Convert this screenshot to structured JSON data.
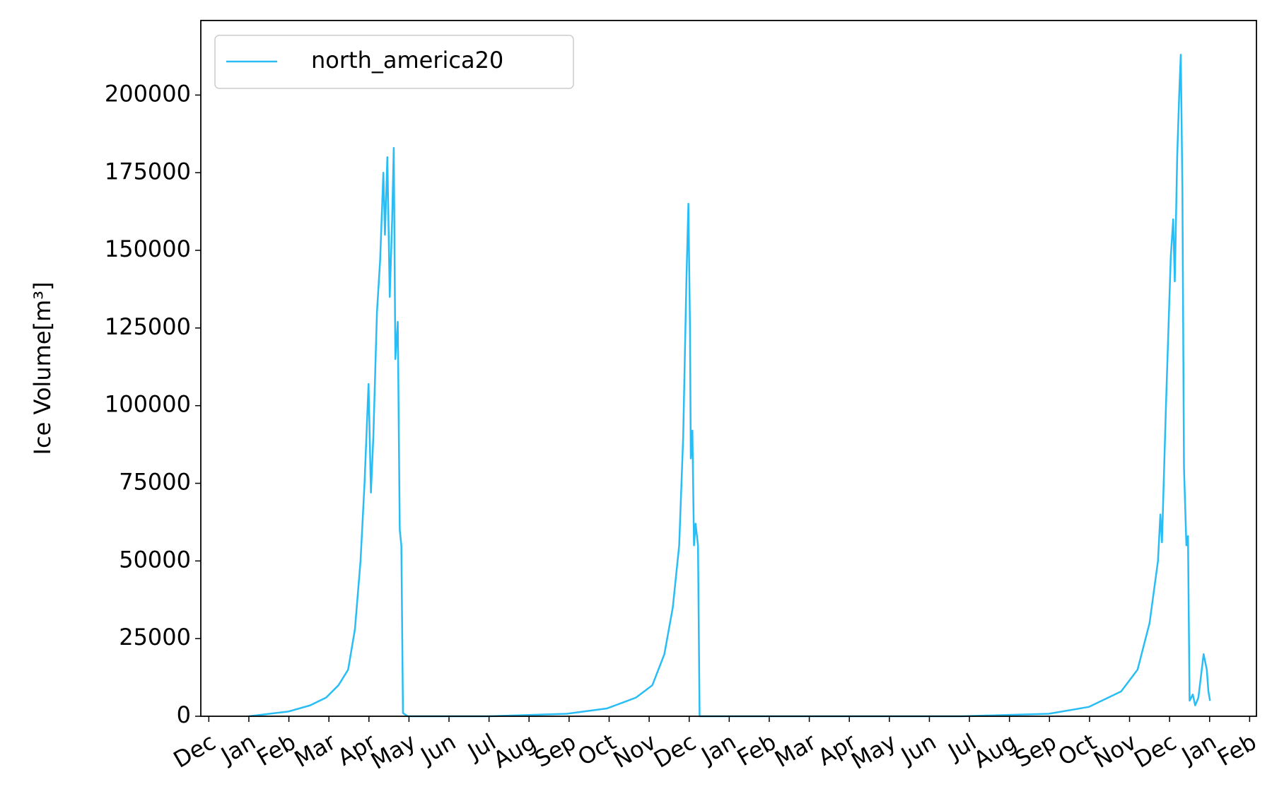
{
  "chart_data": {
    "type": "line",
    "y_label": "Ice Volume[m³]",
    "legend": "upper left",
    "grid": false,
    "xlim": [
      -0.2,
      26.17
    ],
    "ylim": [
      0,
      224000
    ],
    "yticks": [
      0,
      25000,
      50000,
      75000,
      100000,
      125000,
      150000,
      175000,
      200000
    ],
    "xticks": [
      {
        "value": 0,
        "label": "Dec"
      },
      {
        "value": 1,
        "label": "Jan"
      },
      {
        "value": 2,
        "label": "Feb"
      },
      {
        "value": 3,
        "label": "Mar"
      },
      {
        "value": 4,
        "label": "Apr"
      },
      {
        "value": 5,
        "label": "May"
      },
      {
        "value": 6,
        "label": "Jun"
      },
      {
        "value": 7,
        "label": "Jul"
      },
      {
        "value": 8,
        "label": "Aug"
      },
      {
        "value": 9,
        "label": "Sep"
      },
      {
        "value": 10,
        "label": "Oct"
      },
      {
        "value": 11,
        "label": "Nov"
      },
      {
        "value": 12,
        "label": "Dec"
      },
      {
        "value": 13,
        "label": "Jan"
      },
      {
        "value": 14,
        "label": "Feb"
      },
      {
        "value": 15,
        "label": "Mar"
      },
      {
        "value": 16,
        "label": "Apr"
      },
      {
        "value": 17,
        "label": "May"
      },
      {
        "value": 18,
        "label": "Jun"
      },
      {
        "value": 19,
        "label": "Jul"
      },
      {
        "value": 20,
        "label": "Aug"
      },
      {
        "value": 21,
        "label": "Sep"
      },
      {
        "value": 22,
        "label": "Oct"
      },
      {
        "value": 23,
        "label": "Nov"
      },
      {
        "value": 24,
        "label": "Dec"
      },
      {
        "value": 25,
        "label": "Jan"
      },
      {
        "value": 26,
        "label": "Feb"
      }
    ],
    "x": [
      1.0,
      1.98,
      2.53,
      2.93,
      3.24,
      3.48,
      3.65,
      3.79,
      3.89,
      3.99,
      4.05,
      4.11,
      4.2,
      4.28,
      4.36,
      4.4,
      4.46,
      4.52,
      4.58,
      4.62,
      4.66,
      4.72,
      4.77,
      4.81,
      4.85,
      4.97,
      7.0,
      8.94,
      9.94,
      10.67,
      11.08,
      11.38,
      11.59,
      11.75,
      11.85,
      11.93,
      11.98,
      12.02,
      12.04,
      12.08,
      12.12,
      12.16,
      12.22,
      12.26,
      18.82,
      20.98,
      21.98,
      22.79,
      23.2,
      23.5,
      23.71,
      23.77,
      23.81,
      23.91,
      24.03,
      24.09,
      24.13,
      24.19,
      24.24,
      24.28,
      24.32,
      24.36,
      24.42,
      24.46,
      24.5,
      24.58,
      24.64,
      24.72,
      24.85,
      24.93,
      24.97,
      25.01
    ],
    "series": [
      {
        "name": "north_america20",
        "color": "#29bdf5",
        "values": [
          0,
          1500,
          3500,
          6000,
          10000,
          15000,
          28000,
          50000,
          75000,
          107000,
          72000,
          90000,
          130000,
          147000,
          175000,
          155000,
          180000,
          135000,
          160000,
          183000,
          115000,
          127000,
          60000,
          55000,
          1000,
          0,
          0,
          800,
          2500,
          6000,
          10000,
          20000,
          35000,
          55000,
          90000,
          140000,
          165000,
          125000,
          83000,
          92000,
          55000,
          62000,
          55000,
          0,
          0,
          800,
          3000,
          8000,
          15000,
          30000,
          50000,
          65000,
          56000,
          100000,
          148000,
          160000,
          140000,
          180000,
          200000,
          213000,
          170000,
          80000,
          55000,
          58000,
          5000,
          7000,
          3500,
          6000,
          20000,
          15000,
          8000,
          5000
        ]
      }
    ]
  }
}
